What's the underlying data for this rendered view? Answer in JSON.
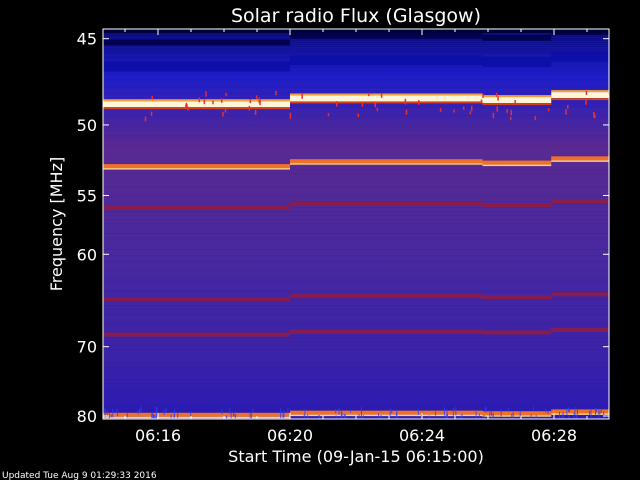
{
  "chart_data": {
    "type": "heatmap",
    "title": "Solar radio Flux (Glasgow)",
    "xlabel": "Start Time (09-Jan-15 06:15:00)",
    "ylabel": "Frequency [MHz]",
    "x_range_minutes": [
      "06:14:20",
      "06:29:40"
    ],
    "x_ticks": [
      "06:16",
      "06:20",
      "06:24",
      "06:28"
    ],
    "ylim": [
      44.5,
      80.5
    ],
    "y_ticks": [
      45,
      50,
      55,
      60,
      70,
      80
    ],
    "y_scale": "reciprocal",
    "colormap": [
      "#00004a",
      "#1a1ab4",
      "#5a2a8c",
      "#8a1a3c",
      "#e8582a",
      "#ffd080",
      "#ffffe8"
    ],
    "time_segments": [
      "06:14:20",
      "06:20:00",
      "06:25:50",
      "06:27:55",
      "06:29:40"
    ],
    "bands": [
      {
        "freq_mhz": 45.2,
        "level": "dark-blue"
      },
      {
        "freq_mhz": 46.5,
        "level": "blue"
      },
      {
        "freq_mhz": 48.7,
        "level": "white-hot"
      },
      {
        "freq_mhz": 52.8,
        "level": "orange"
      },
      {
        "freq_mhz": 56.0,
        "level": "dark-red"
      },
      {
        "freq_mhz": 64.5,
        "level": "dark-red"
      },
      {
        "freq_mhz": 68.5,
        "level": "dark-red"
      },
      {
        "freq_mhz": 79.8,
        "level": "orange"
      }
    ]
  },
  "footer": {
    "updated": "Updated Tue Aug  9 01:29:33 2016"
  },
  "colors": {
    "background": "#000000",
    "frame": "#ffffff"
  }
}
